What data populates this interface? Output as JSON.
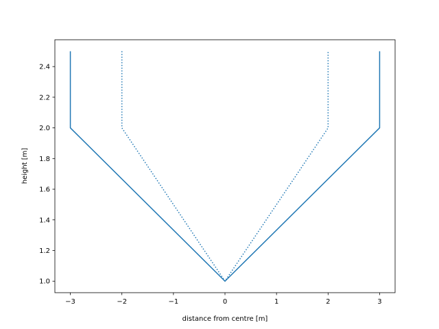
{
  "chart_data": {
    "type": "line",
    "title": "",
    "xlabel": "distance from centre [m]",
    "ylabel": "height [m]",
    "xlim": [
      -3.3,
      3.3
    ],
    "ylim": [
      0.925,
      2.575
    ],
    "x_ticks": [
      -3,
      -2,
      -1,
      0,
      1,
      2,
      3
    ],
    "x_tick_labels": [
      "−3",
      "−2",
      "−1",
      "0",
      "1",
      "2",
      "3"
    ],
    "y_ticks": [
      1.0,
      1.2,
      1.4,
      1.6,
      1.8,
      2.0,
      2.2,
      2.4
    ],
    "y_tick_labels": [
      "1.0",
      "1.2",
      "1.4",
      "1.6",
      "1.8",
      "2.0",
      "2.2",
      "2.4"
    ],
    "grid": false,
    "legend": "none",
    "series": [
      {
        "style": "solid",
        "color": "#1f77b4",
        "x": [
          -3,
          -3,
          0,
          3,
          3
        ],
        "y": [
          2.5,
          2.0,
          1.0,
          2.0,
          2.5
        ]
      },
      {
        "style": "dotted",
        "color": "#1f77b4",
        "x": [
          -2,
          -2,
          0,
          2,
          2
        ],
        "y": [
          2.5,
          2.0,
          1.0,
          2.0,
          2.5
        ]
      }
    ]
  }
}
